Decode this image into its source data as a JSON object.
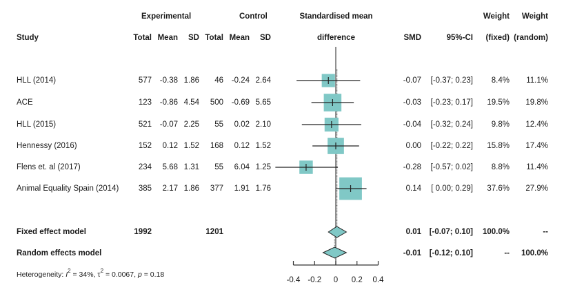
{
  "chart_data": {
    "type": "forest",
    "title": "",
    "headers": {
      "group_experimental": "Experimental",
      "group_control": "Control",
      "plot_title_line1": "Standardised mean",
      "plot_title_line2": "difference",
      "study": "Study",
      "total": "Total",
      "mean": "Mean",
      "sd": "SD",
      "smd": "SMD",
      "ci": "95%-CI",
      "weight": "Weight",
      "weight_fixed": "(fixed)",
      "weight_random": "(random)"
    },
    "studies": [
      {
        "study": "HLL (2014)",
        "e_total": "577",
        "e_mean": "-0.38",
        "e_sd": "1.86",
        "c_total": "46",
        "c_mean": "-0.24",
        "c_sd": "2.64",
        "smd": -0.07,
        "lo": -0.37,
        "hi": 0.23,
        "smd_text": "-0.07",
        "ci_text": "[-0.37; 0.23]",
        "w_fixed": "8.4%",
        "w_random": "11.1%",
        "w_fixed_val": 8.4
      },
      {
        "study": "ACE",
        "e_total": "123",
        "e_mean": "-0.86",
        "e_sd": "4.54",
        "c_total": "500",
        "c_mean": "-0.69",
        "c_sd": "5.65",
        "smd": -0.03,
        "lo": -0.23,
        "hi": 0.17,
        "smd_text": "-0.03",
        "ci_text": "[-0.23; 0.17]",
        "w_fixed": "19.5%",
        "w_random": "19.8%",
        "w_fixed_val": 19.5
      },
      {
        "study": "HLL (2015)",
        "e_total": "521",
        "e_mean": "-0.07",
        "e_sd": "2.25",
        "c_total": "55",
        "c_mean": "0.02",
        "c_sd": "2.10",
        "smd": -0.04,
        "lo": -0.32,
        "hi": 0.24,
        "smd_text": "-0.04",
        "ci_text": "[-0.32; 0.24]",
        "w_fixed": "9.8%",
        "w_random": "12.4%",
        "w_fixed_val": 9.8
      },
      {
        "study": "Hennessy (2016)",
        "e_total": "152",
        "e_mean": "0.12",
        "e_sd": "1.52",
        "c_total": "168",
        "c_mean": "0.12",
        "c_sd": "1.52",
        "smd": 0.0,
        "lo": -0.22,
        "hi": 0.22,
        "smd_text": "0.00",
        "ci_text": "[-0.22; 0.22]",
        "w_fixed": "15.8%",
        "w_random": "17.4%",
        "w_fixed_val": 15.8
      },
      {
        "study": "Flens et. al (2017)",
        "e_total": "234",
        "e_mean": "5.68",
        "e_sd": "1.31",
        "c_total": "55",
        "c_mean": "6.04",
        "c_sd": "1.25",
        "smd": -0.28,
        "lo": -0.57,
        "hi": 0.02,
        "smd_text": "-0.28",
        "ci_text": "[-0.57; 0.02]",
        "w_fixed": "8.8%",
        "w_random": "11.4%",
        "w_fixed_val": 8.8
      },
      {
        "study": "Animal Equality Spain (2014)",
        "e_total": "385",
        "e_mean": "2.17",
        "e_sd": "1.86",
        "c_total": "377",
        "c_mean": "1.91",
        "c_sd": "1.76",
        "smd": 0.14,
        "lo": 0.0,
        "hi": 0.29,
        "smd_text": "0.14",
        "ci_text": "[ 0.00; 0.29]",
        "w_fixed": "37.6%",
        "w_random": "27.9%",
        "w_fixed_val": 37.6
      }
    ],
    "fixed": {
      "label": "Fixed effect model",
      "e_total": "1992",
      "c_total": "1201",
      "smd": 0.01,
      "lo": -0.07,
      "hi": 0.1,
      "smd_text": "0.01",
      "ci_text": "[-0.07; 0.10]",
      "w_fixed": "100.0%",
      "w_random": "--"
    },
    "random": {
      "label": "Random effects model",
      "smd": -0.01,
      "lo": -0.12,
      "hi": 0.1,
      "smd_text": "-0.01",
      "ci_text": "[-0.12; 0.10]",
      "w_fixed": "--",
      "w_random": "100.0%"
    },
    "heterogeneity": {
      "prefix": "Heterogeneity: ",
      "i2_sym": "I",
      "i2_val": " = 34%, ",
      "tau_sym": "τ",
      "tau_val": " = 0.0067, ",
      "p_sym": "p",
      "p_val": " = 0.18"
    },
    "xaxis": {
      "ticks": [
        -0.4,
        -0.2,
        0,
        0.2,
        0.4
      ],
      "tick_labels": [
        "-0.4",
        "-0.2",
        "0",
        "0.2",
        "0.4"
      ],
      "range": [
        -0.4,
        0.4
      ]
    },
    "colors": {
      "box": "#80c8c6",
      "diamond": "#80c8c6",
      "line": "#222222"
    }
  }
}
